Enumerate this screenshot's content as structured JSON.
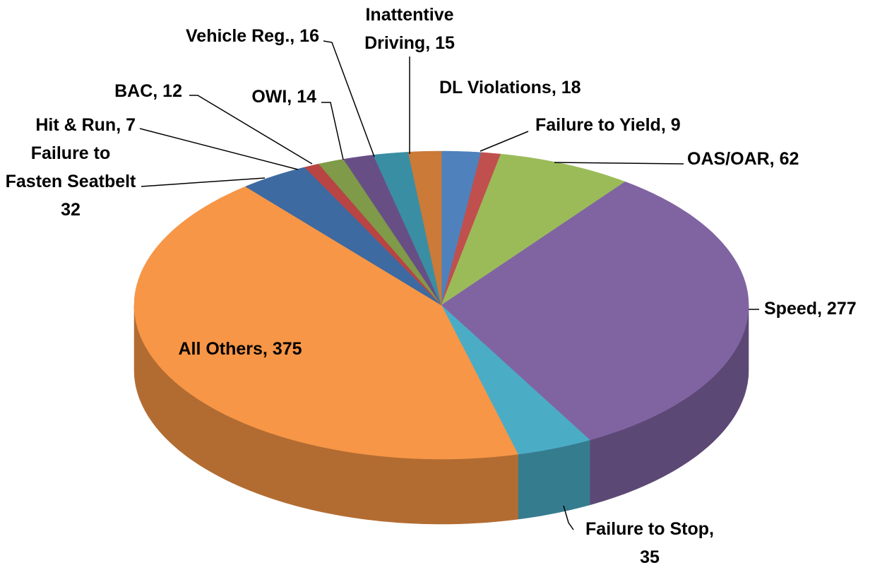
{
  "chart_data": {
    "type": "pie3d",
    "values": [
      18,
      9,
      62,
      277,
      35,
      375,
      32,
      7,
      12,
      14,
      16,
      15
    ],
    "value_labels": [
      [
        "DL Violations, 18"
      ],
      [
        "Failure to Yield, 9"
      ],
      [
        "OAS/OAR, 62"
      ],
      [
        "Speed, 277"
      ],
      [
        "Failure to Stop,",
        "35"
      ],
      [
        "All Others, 375"
      ],
      [
        "Failure to",
        "Fasten Seatbelt",
        "32"
      ],
      [
        "Hit & Run, 7"
      ],
      [
        "BAC, 12"
      ],
      [
        "OWI, 14"
      ],
      [
        "Vehicle Reg., 16"
      ],
      [
        "Inattentive",
        "Driving, 15"
      ]
    ],
    "colors": [
      "#4f81bd",
      "#c0504d",
      "#9bbb59",
      "#8064a2",
      "#4bacc6",
      "#f79646",
      "#3d6aa1",
      "#b84444",
      "#7f9a48",
      "#674f86",
      "#3a8ea3",
      "#cb7a37"
    ]
  }
}
